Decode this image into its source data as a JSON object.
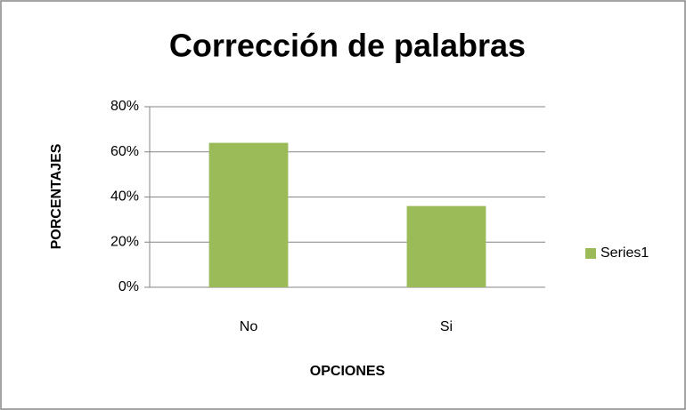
{
  "chart_data": {
    "type": "bar",
    "title": "Corrección de palabras",
    "x_label": "OPCIONES",
    "y_label": "PORCENTAJES",
    "categories": [
      "No",
      "Si"
    ],
    "series": [
      {
        "name": "Series1",
        "color": "#9bbb59",
        "values": [
          64,
          36
        ]
      }
    ],
    "ylim": [
      0,
      80
    ],
    "yticks": [
      {
        "value": 0,
        "label": "0%"
      },
      {
        "value": 20,
        "label": "20%"
      },
      {
        "value": 40,
        "label": "40%"
      },
      {
        "value": 60,
        "label": "60%"
      },
      {
        "value": 80,
        "label": "80%"
      }
    ],
    "grid": true,
    "legend": "right"
  }
}
